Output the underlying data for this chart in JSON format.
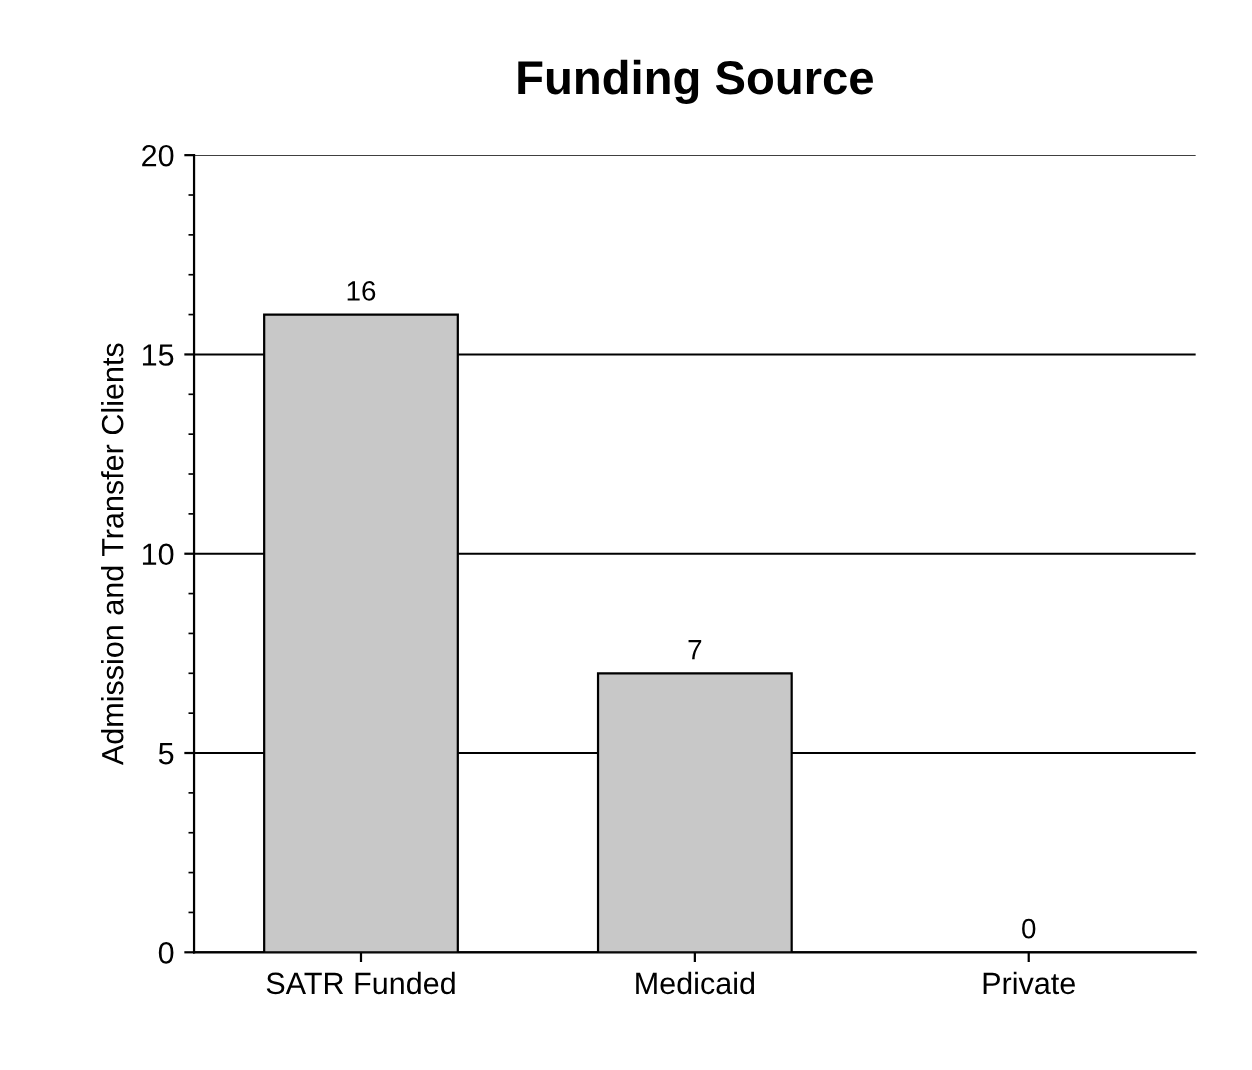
{
  "chart_data": {
    "type": "bar",
    "title": "Funding Source",
    "ylabel": "Admission and Transfer Clients",
    "categories": [
      "SATR Funded",
      "Medicaid",
      "Private"
    ],
    "values": [
      16,
      7,
      0
    ],
    "color": "#c8c8c8",
    "ylim": [
      0,
      20
    ],
    "yticks": [
      0,
      5,
      10,
      15,
      20
    ],
    "grid": "y",
    "data_labels": true
  }
}
